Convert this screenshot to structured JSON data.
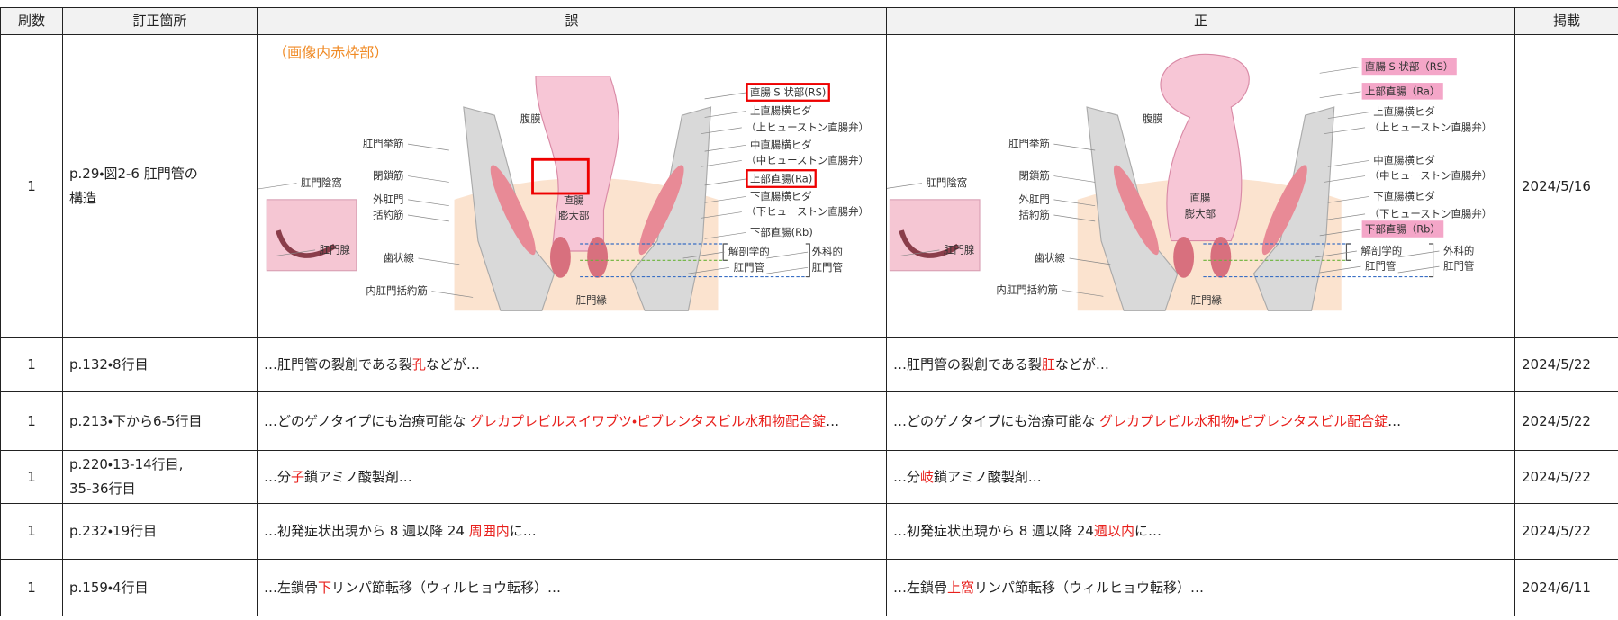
{
  "table": {
    "header": [
      "刷数",
      "訂正箇所",
      "誤",
      "正",
      "掲載"
    ],
    "rows": [
      {
        "print": "1",
        "location": "p.29・図2-6 肛門管の\n構造",
        "wrong": {
          "note": "（画像内赤枠部）",
          "labels": [
            {
              "text": "直腸 S 状部(RS)",
              "style": "red-box"
            },
            {
              "text": "上直腸横ヒダ"
            },
            {
              "text": "（上ヒューストン直腸弁）"
            },
            {
              "text": "中直腸横ヒダ"
            },
            {
              "text": "（中ヒューストン直腸弁）"
            },
            {
              "text": "上部直腸(Ra)",
              "style": "red-box"
            },
            {
              "text": "下直腸横ヒダ"
            },
            {
              "text": "（下ヒューストン直腸弁）"
            },
            {
              "text": "下部直腸(Rb)"
            },
            {
              "text": "解剖学的"
            },
            {
              "text": "肛門管"
            },
            {
              "text": "外科的"
            },
            {
              "text": "肛門管"
            },
            {
              "text": "腹膜"
            },
            {
              "text": "肛門挙筋"
            },
            {
              "text": "閉鎖筋"
            },
            {
              "text": "外肛門"
            },
            {
              "text": "括約筋"
            },
            {
              "text": "肛門陰窩"
            },
            {
              "text": "直腸"
            },
            {
              "text": "膨大部"
            },
            {
              "text": "肛門腺"
            },
            {
              "text": "歯状線"
            },
            {
              "text": "内肛門括約筋"
            },
            {
              "text": "肛門縁"
            }
          ]
        },
        "right": {
          "labels": [
            {
              "text": "直腸 S 状部（RS）",
              "style": "pink"
            },
            {
              "text": "上部直腸（Ra）",
              "style": "pink"
            },
            {
              "text": "上直腸横ヒダ"
            },
            {
              "text": "（上ヒューストン直腸弁）"
            },
            {
              "text": "中直腸横ヒダ"
            },
            {
              "text": "（中ヒューストン直腸弁）"
            },
            {
              "text": "下直腸横ヒダ"
            },
            {
              "text": "（下ヒューストン直腸弁）"
            },
            {
              "text": "下部直腸（Rb）",
              "style": "pink"
            },
            {
              "text": "解剖学的"
            },
            {
              "text": "肛門管"
            },
            {
              "text": "外科的"
            },
            {
              "text": "肛門管"
            },
            {
              "text": "腹膜"
            },
            {
              "text": "肛門挙筋"
            },
            {
              "text": "閉鎖筋"
            },
            {
              "text": "外肛門"
            },
            {
              "text": "括約筋"
            },
            {
              "text": "肛門陰窩"
            },
            {
              "text": "直腸"
            },
            {
              "text": "膨大部"
            },
            {
              "text": "肛門腺"
            },
            {
              "text": "歯状線"
            },
            {
              "text": "内肛門括約筋"
            },
            {
              "text": "肛門縁"
            }
          ]
        },
        "date": "2024/5/16"
      },
      {
        "print": "1",
        "location": "p.132・8行目",
        "wrong": [
          "…肛門管の裂創である裂",
          {
            "text": "孔",
            "color": "#e8201c"
          },
          "などが…"
        ],
        "right": [
          "…肛門管の裂創である裂",
          {
            "text": "肛",
            "color": "#e8201c"
          },
          "などが…"
        ],
        "date": "2024/5/22"
      },
      {
        "print": "1",
        "location": "p.213・下から6-5行目",
        "wrong": [
          "…どのゲノタイプにも治療可能な ",
          {
            "text": "グレカプレビルスイワブツ・ピブレンタスビル水和物配合錠",
            "color": "#e8201c"
          },
          "…"
        ],
        "right": [
          "…どのゲノタイプにも治療可能な ",
          {
            "text": "グレカプレビル水和物・ピブレンタスビル配合錠",
            "color": "#e8201c"
          },
          "…"
        ],
        "date": "2024/5/22"
      },
      {
        "print": "1",
        "location": "p.220・13-14行目,\n35-36行目",
        "wrong": [
          "…分",
          {
            "text": "子",
            "color": "#e8201c"
          },
          "鎖アミノ酸製剤…"
        ],
        "right": [
          "…分",
          {
            "text": "岐",
            "color": "#e8201c"
          },
          "鎖アミノ酸製剤…"
        ],
        "date": "2024/5/22"
      },
      {
        "print": "1",
        "location": "p.232・19行目",
        "wrong": [
          "…初発症状出現から 8 週以降 24 ",
          {
            "text": "周囲内",
            "color": "#e8201c"
          },
          "に…"
        ],
        "right": [
          "…初発症状出現から 8 週以降 24",
          {
            "text": "週以内",
            "color": "#e8201c"
          },
          "に…"
        ],
        "date": "2024/5/22"
      },
      {
        "print": "1",
        "location": "p.159・4行目",
        "wrong": [
          "…左鎖骨",
          {
            "text": "下",
            "color": "#e8201c"
          },
          "リンパ節転移（ウィルヒョウ転移）…"
        ],
        "right": [
          "…左鎖骨",
          {
            "text": "上窩",
            "color": "#e8201c"
          },
          "リンパ節転移（ウィルヒョウ転移）…"
        ],
        "date": "2024/6/11"
      }
    ]
  }
}
